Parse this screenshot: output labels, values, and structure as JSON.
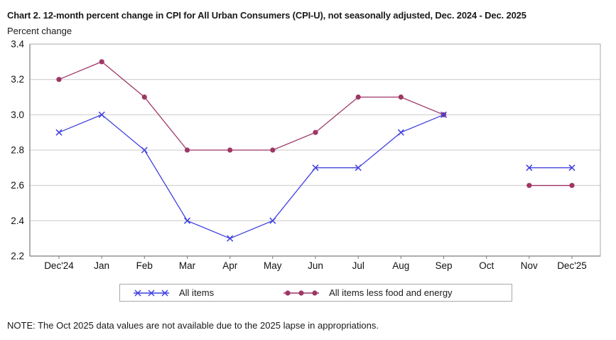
{
  "chart_data": {
    "type": "line",
    "title": "Chart 2. 12-month percent change in CPI for All Urban Consumers (CPI-U), not seasonally adjusted, Dec. 2024 - Dec. 2025",
    "ylabel": "Percent change",
    "xlabel": "",
    "categories": [
      "Dec'24",
      "Jan",
      "Feb",
      "Mar",
      "Apr",
      "May",
      "Jun",
      "Jul",
      "Aug",
      "Sep",
      "Oct",
      "Nov",
      "Dec'25"
    ],
    "ylim": [
      2.2,
      3.4
    ],
    "yticks": [
      2.2,
      2.4,
      2.6,
      2.8,
      3.0,
      3.2,
      3.4
    ],
    "grid": true,
    "legend_position": "bottom",
    "missing_data_months": [
      "Oct"
    ],
    "series": [
      {
        "name": "All items",
        "marker": "x",
        "color": "#4040e0",
        "values": [
          2.9,
          3.0,
          2.8,
          2.4,
          2.3,
          2.4,
          2.7,
          2.7,
          2.9,
          3.0,
          null,
          2.7,
          2.7
        ]
      },
      {
        "name": "All items less food and energy",
        "marker": "dot",
        "color": "#9e3666",
        "values": [
          3.2,
          3.3,
          3.1,
          2.8,
          2.8,
          2.8,
          2.9,
          3.1,
          3.1,
          3.0,
          null,
          2.6,
          2.6
        ]
      }
    ],
    "colors": {
      "grid": "#c9c9c9",
      "plot_border": "#a9a9a9",
      "axis": "#7d7d7d",
      "tick_text": "#111111"
    }
  },
  "note": {
    "text": "NOTE: The Oct 2025 data values are not available due to the 2025 lapse in appropriations."
  }
}
